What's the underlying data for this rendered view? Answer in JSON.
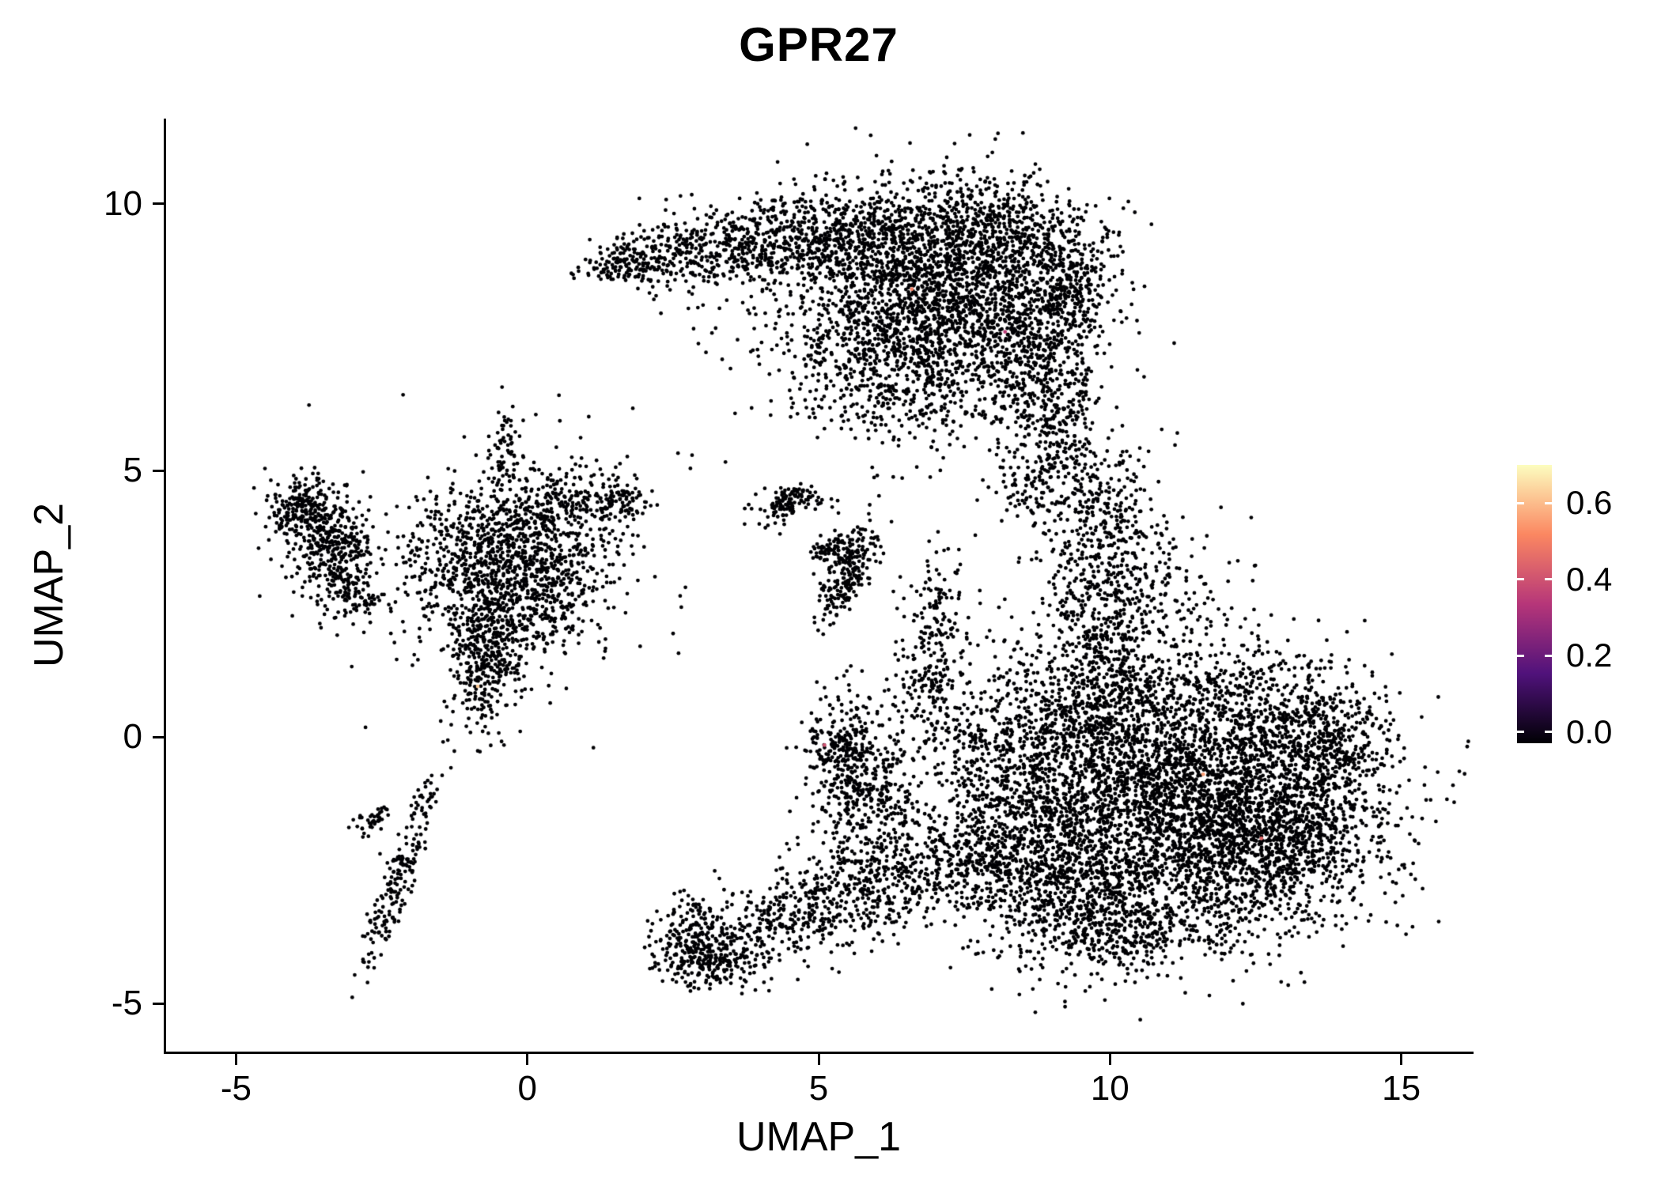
{
  "chart_data": {
    "type": "scatter",
    "title": "GPR27",
    "xlabel": "UMAP_1",
    "ylabel": "UMAP_2",
    "x_range": [
      -6.2,
      16.2
    ],
    "y_range": [
      -5.9,
      11.6
    ],
    "x_ticks": [
      -5,
      0,
      5,
      10,
      15
    ],
    "y_ticks": [
      -5,
      0,
      5,
      10
    ],
    "grid": false,
    "point_color": "#000004",
    "point_radius": 2.4,
    "seed": 42,
    "legend": {
      "position": "right",
      "colormap": "magma",
      "domain": [
        -0.03,
        0.7
      ],
      "ticks": [
        {
          "value": 0.0,
          "label": "0.0"
        },
        {
          "value": 0.2,
          "label": "0.2"
        },
        {
          "value": 0.4,
          "label": "0.4"
        },
        {
          "value": 0.6,
          "label": "0.6"
        }
      ],
      "stops": [
        {
          "pos": 0.0,
          "color": "#000004"
        },
        {
          "pos": 0.25,
          "color": "#50127B"
        },
        {
          "pos": 0.5,
          "color": "#B63679"
        },
        {
          "pos": 0.75,
          "color": "#FB8761"
        },
        {
          "pos": 1.0,
          "color": "#FCFDBF"
        }
      ]
    },
    "clusters": [
      {
        "cx": 7.2,
        "cy": 8.3,
        "sx": 1.15,
        "sy": 1.05,
        "n": 2200
      },
      {
        "cx": 8.8,
        "cy": 7.0,
        "sx": 0.5,
        "sy": 1.0,
        "n": 450
      },
      {
        "cx": 5.3,
        "cy": 9.4,
        "sx": 1.0,
        "sy": 0.45,
        "n": 600
      },
      {
        "cx": 3.6,
        "cy": 9.2,
        "sx": 0.7,
        "sy": 0.35,
        "n": 300
      },
      {
        "cx": 2.3,
        "cy": 9.0,
        "sx": 0.5,
        "sy": 0.28,
        "n": 170
      },
      {
        "cx": 1.5,
        "cy": 8.85,
        "sx": 0.28,
        "sy": 0.22,
        "n": 90
      },
      {
        "cx": 6.2,
        "cy": 6.9,
        "sx": 0.9,
        "sy": 0.8,
        "n": 400
      },
      {
        "cx": 4.8,
        "cy": 7.8,
        "sx": 0.9,
        "sy": 0.9,
        "n": 130
      },
      {
        "cx": 8.2,
        "cy": 9.5,
        "sx": 0.9,
        "sy": 0.45,
        "n": 350
      },
      {
        "cx": 9.35,
        "cy": 8.5,
        "sx": 0.35,
        "sy": 0.5,
        "n": 180
      },
      {
        "cx": 9.2,
        "cy": 5.6,
        "sx": 0.3,
        "sy": 0.7,
        "n": 150
      },
      {
        "cx": 8.7,
        "cy": 4.7,
        "sx": 0.4,
        "sy": 0.5,
        "n": 90
      },
      {
        "cx": 11.3,
        "cy": -1.2,
        "sx": 1.5,
        "sy": 1.2,
        "n": 3600
      },
      {
        "cx": 12.9,
        "cy": -2.0,
        "sx": 0.8,
        "sy": 0.7,
        "n": 600
      },
      {
        "cx": 13.6,
        "cy": -0.1,
        "sx": 0.6,
        "sy": 0.6,
        "n": 450
      },
      {
        "cx": 9.3,
        "cy": -2.7,
        "sx": 0.8,
        "sy": 0.7,
        "n": 550
      },
      {
        "cx": 10.4,
        "cy": -3.6,
        "sx": 0.9,
        "sy": 0.4,
        "n": 350
      },
      {
        "cx": 8.4,
        "cy": -1.3,
        "sx": 0.6,
        "sy": 0.9,
        "n": 450
      },
      {
        "cx": 9.6,
        "cy": 0.5,
        "sx": 0.7,
        "sy": 0.8,
        "n": 550
      },
      {
        "cx": 9.85,
        "cy": 2.4,
        "sx": 0.55,
        "sy": 0.9,
        "n": 420
      },
      {
        "cx": 10.0,
        "cy": 4.3,
        "sx": 0.45,
        "sy": 0.65,
        "n": 220
      },
      {
        "cx": 11.1,
        "cy": 2.7,
        "sx": 0.8,
        "sy": 0.7,
        "n": 130
      },
      {
        "cx": 12.4,
        "cy": 0.8,
        "sx": 0.9,
        "sy": 0.5,
        "n": 180
      },
      {
        "cx": -0.2,
        "cy": 3.6,
        "sx": 0.8,
        "sy": 0.7,
        "n": 650
      },
      {
        "cx": -0.55,
        "cy": 2.2,
        "sx": 0.35,
        "sy": 0.8,
        "n": 320
      },
      {
        "cx": -0.8,
        "cy": 1.3,
        "sx": 0.28,
        "sy": 0.55,
        "n": 200
      },
      {
        "cx": 0.9,
        "cy": 4.4,
        "sx": 0.55,
        "sy": 0.35,
        "n": 170
      },
      {
        "cx": -1.3,
        "cy": 3.1,
        "sx": 0.55,
        "sy": 0.7,
        "n": 180
      },
      {
        "cx": 0.35,
        "cy": 2.7,
        "sx": 0.55,
        "sy": 0.6,
        "n": 220
      },
      {
        "cx": -0.35,
        "cy": 5.3,
        "sx": 0.13,
        "sy": 0.5,
        "n": 70
      },
      {
        "cx": 0.0,
        "cy": 3.2,
        "sx": 1.4,
        "sy": 1.3,
        "n": 160
      },
      {
        "cx": 1.6,
        "cy": 4.5,
        "sx": 0.25,
        "sy": 0.2,
        "n": 60
      },
      {
        "cx": -3.85,
        "cy": 4.25,
        "sx": 0.28,
        "sy": 0.3,
        "n": 220
      },
      {
        "cx": -3.25,
        "cy": 3.4,
        "sx": 0.32,
        "sy": 0.5,
        "n": 280
      },
      {
        "cx": -3.6,
        "cy": 3.8,
        "sx": 0.4,
        "sy": 0.5,
        "n": 100
      },
      {
        "cx": -2.9,
        "cy": 2.7,
        "sx": 0.25,
        "sy": 0.25,
        "n": 60
      },
      {
        "cx": 5.5,
        "cy": 3.05,
        "sx": 0.16,
        "sy": 0.5,
        "rot": -25,
        "n": 200
      },
      {
        "cx": 5.3,
        "cy": 3.5,
        "sx": 0.22,
        "sy": 0.15,
        "n": 90
      },
      {
        "cx": 4.55,
        "cy": 4.4,
        "sx": 0.32,
        "sy": 0.14,
        "rot": 10,
        "n": 80
      },
      {
        "cx": 4.4,
        "cy": 4.35,
        "sx": 0.1,
        "sy": 0.25,
        "rot": -35,
        "n": 50
      },
      {
        "cx": -2.2,
        "cy": -2.6,
        "sx": 0.13,
        "sy": 0.95,
        "rot": -18,
        "n": 200
      },
      {
        "cx": -2.65,
        "cy": -1.55,
        "sx": 0.2,
        "sy": 0.12,
        "rot": 30,
        "n": 40
      },
      {
        "cx": 3.15,
        "cy": -4.1,
        "sx": 0.5,
        "sy": 0.3,
        "n": 300
      },
      {
        "cx": 2.8,
        "cy": -3.55,
        "sx": 0.25,
        "sy": 0.35,
        "n": 110
      },
      {
        "cx": 4.3,
        "cy": -3.5,
        "sx": 0.6,
        "sy": 0.35,
        "n": 180
      },
      {
        "cx": 5.3,
        "cy": -3.0,
        "sx": 0.6,
        "sy": 0.45,
        "n": 220
      },
      {
        "cx": 6.4,
        "cy": -2.5,
        "sx": 0.7,
        "sy": 0.5,
        "n": 280
      },
      {
        "cx": 7.5,
        "cy": -2.3,
        "sx": 0.6,
        "sy": 0.5,
        "n": 240
      },
      {
        "cx": 5.45,
        "cy": -0.3,
        "sx": 0.3,
        "sy": 0.55,
        "n": 280
      },
      {
        "cx": 5.9,
        "cy": -1.2,
        "sx": 0.5,
        "sy": 0.5,
        "n": 170
      },
      {
        "cx": 6.6,
        "cy": -0.3,
        "sx": 0.7,
        "sy": 0.9,
        "n": 160
      },
      {
        "cx": 6.9,
        "cy": 1.1,
        "sx": 0.28,
        "sy": 0.5,
        "n": 90
      },
      {
        "cx": 7.0,
        "cy": 2.4,
        "sx": 0.3,
        "sy": 0.6,
        "n": 120
      },
      {
        "cx": 7.8,
        "cy": 0.3,
        "sx": 0.6,
        "sy": 0.8,
        "n": 150
      }
    ],
    "highlight_points": [
      {
        "x": -0.85,
        "y": 0.95,
        "value": 0.62
      },
      {
        "x": 6.6,
        "y": 8.4,
        "value": 0.5
      },
      {
        "x": 8.2,
        "y": 7.6,
        "value": 0.35
      },
      {
        "x": 11.6,
        "y": -0.7,
        "value": 0.55
      },
      {
        "x": 5.1,
        "y": -0.15,
        "value": 0.4
      },
      {
        "x": 12.6,
        "y": -1.9,
        "value": 0.45
      }
    ]
  }
}
